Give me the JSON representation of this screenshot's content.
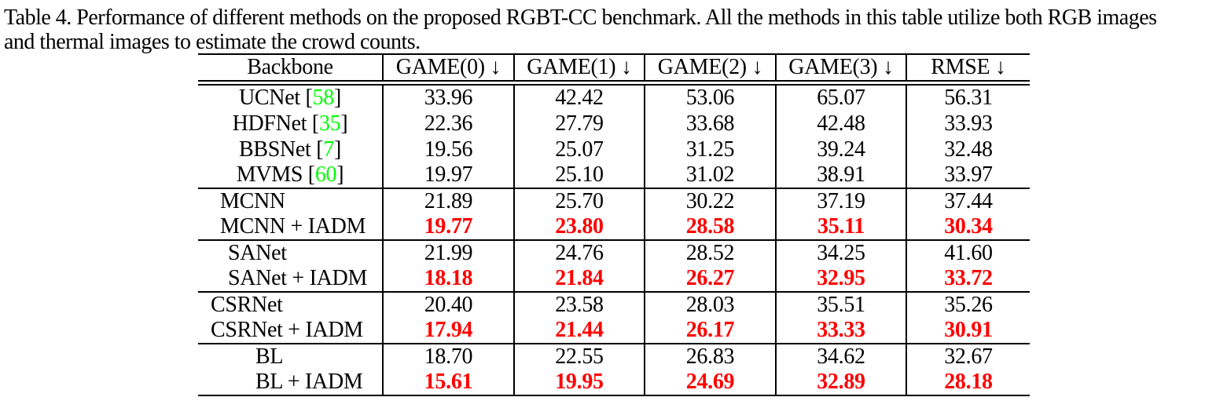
{
  "colors": {
    "highlight_red": "#ff0000",
    "citation_green": "#00ff00",
    "text_black": "#000000",
    "background": "#ffffff"
  },
  "caption": {
    "lines": [
      "Table 4. Performance of different methods on the proposed RGBT-CC benchmark. All the methods in this table utilize both RGB images",
      "and thermal images to estimate the crowd counts."
    ]
  },
  "table": {
    "columns": [
      "Backbone",
      "GAME(0) ↓",
      "GAME(1) ↓",
      "GAME(2) ↓",
      "GAME(3) ↓",
      "RMSE ↓"
    ],
    "groups": [
      {
        "rows": [
          {
            "name": "UCNet",
            "cite": "58",
            "values": [
              "33.96",
              "42.42",
              "53.06",
              "65.07",
              "56.31"
            ],
            "best": false
          },
          {
            "name": "HDFNet",
            "cite": "35",
            "values": [
              "22.36",
              "27.79",
              "33.68",
              "42.48",
              "33.93"
            ],
            "best": false
          },
          {
            "name": "BBSNet",
            "cite": "7",
            "values": [
              "19.56",
              "25.07",
              "31.25",
              "39.24",
              "32.48"
            ],
            "best": false
          },
          {
            "name": "MVMS",
            "cite": "60",
            "values": [
              "19.97",
              "25.10",
              "31.02",
              "38.91",
              "33.97"
            ],
            "best": false
          }
        ]
      },
      {
        "rows": [
          {
            "name": "MCNN",
            "cite": null,
            "values": [
              "21.89",
              "25.70",
              "30.22",
              "37.19",
              "37.44"
            ],
            "best": false
          },
          {
            "name": "MCNN + IADM",
            "cite": null,
            "values": [
              "19.77",
              "23.80",
              "28.58",
              "35.11",
              "30.34"
            ],
            "best": true
          }
        ]
      },
      {
        "rows": [
          {
            "name": "SANet",
            "cite": null,
            "values": [
              "21.99",
              "24.76",
              "28.52",
              "34.25",
              "41.60"
            ],
            "best": false
          },
          {
            "name": "SANet + IADM",
            "cite": null,
            "values": [
              "18.18",
              "21.84",
              "26.27",
              "32.95",
              "33.72"
            ],
            "best": true
          }
        ]
      },
      {
        "rows": [
          {
            "name": "CSRNet",
            "cite": null,
            "values": [
              "20.40",
              "23.58",
              "28.03",
              "35.51",
              "35.26"
            ],
            "best": false
          },
          {
            "name": "CSRNet + IADM",
            "cite": null,
            "values": [
              "17.94",
              "21.44",
              "26.17",
              "33.33",
              "30.91"
            ],
            "best": true
          }
        ]
      },
      {
        "rows": [
          {
            "name": "BL",
            "cite": null,
            "values": [
              "18.70",
              "22.55",
              "26.83",
              "34.62",
              "32.67"
            ],
            "best": false
          },
          {
            "name": "BL + IADM",
            "cite": null,
            "values": [
              "15.61",
              "19.95",
              "24.69",
              "32.89",
              "28.18"
            ],
            "best": true
          }
        ]
      }
    ]
  }
}
